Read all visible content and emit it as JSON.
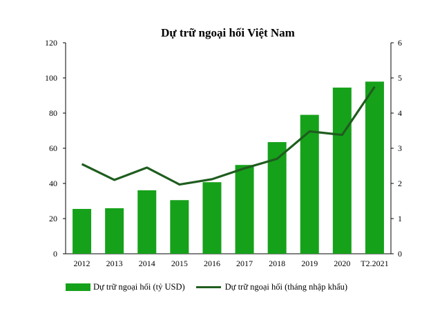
{
  "chart_data": {
    "type": "bar",
    "title": "Dự trữ ngoại hối Việt Nam",
    "categories": [
      "2012",
      "2013",
      "2014",
      "2015",
      "2016",
      "2017",
      "2018",
      "2019",
      "2020",
      "T2.2021"
    ],
    "series": [
      {
        "name": "Dự trữ ngoại hối (tỷ USD)",
        "type": "bar",
        "axis": "left",
        "values": [
          25.5,
          25.9,
          36.1,
          30.5,
          40.7,
          50.5,
          63.5,
          79,
          94.5,
          97.9
        ],
        "color": "#16a11a"
      },
      {
        "name": "Dự trữ ngoại hối (tháng nhập khẩu)",
        "type": "line",
        "axis": "right",
        "values": [
          2.55,
          2.1,
          2.45,
          1.97,
          2.12,
          2.43,
          2.7,
          3.48,
          3.38,
          4.75
        ],
        "color": "#1f5d1f"
      }
    ],
    "ylim_left": [
      0,
      120
    ],
    "yticks_left": [
      "0",
      "20",
      "40",
      "60",
      "80",
      "100",
      "120"
    ],
    "ylim_right": [
      0,
      6
    ],
    "yticks_right": [
      "0",
      "1",
      "2",
      "3",
      "4",
      "5",
      "6"
    ],
    "grid": false,
    "legend_position": "bottom"
  }
}
